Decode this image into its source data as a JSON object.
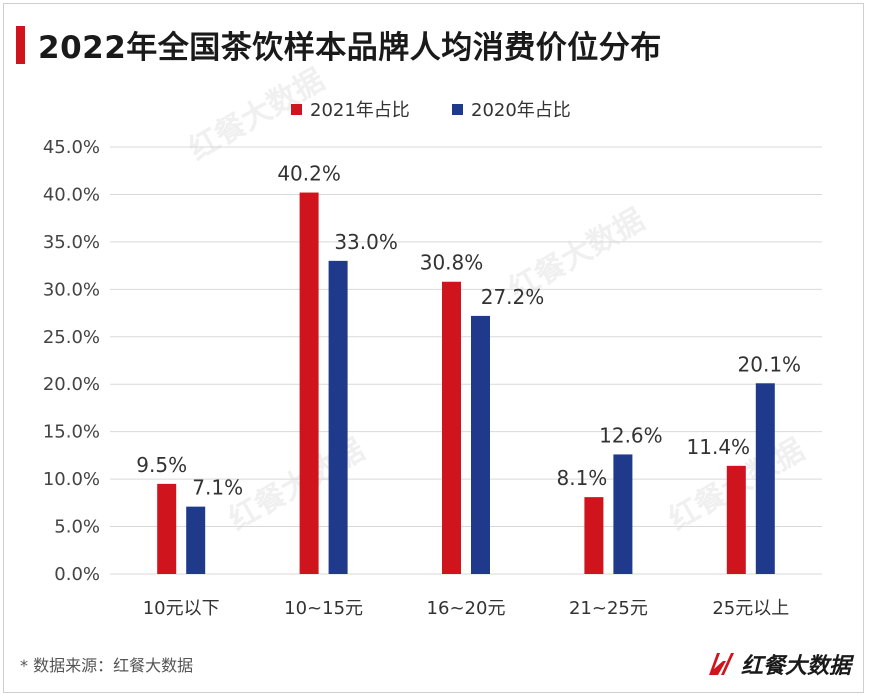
{
  "title": "2022年全国茶饮样本品牌人均消费价位分布",
  "source": "* 数据来源：红餐大数据",
  "logo_text": "红餐大数据",
  "watermark_text": "红餐大数据",
  "colors": {
    "series2021": "#d0141e",
    "series2020": "#1f3a8a",
    "accent": "#d0141e"
  },
  "chart_data": {
    "type": "bar",
    "categories": [
      "10元以下",
      "10~15元",
      "16~20元",
      "21~25元",
      "25元以上"
    ],
    "series": [
      {
        "name": "2021年占比",
        "values": [
          9.5,
          40.2,
          30.8,
          8.1,
          11.4
        ],
        "labels": [
          "9.5%",
          "40.2%",
          "30.8%",
          "8.1%",
          "11.4%"
        ]
      },
      {
        "name": "2020年占比",
        "values": [
          7.1,
          33.0,
          27.2,
          12.6,
          20.1
        ],
        "labels": [
          "7.1%",
          "33.0%",
          "27.2%",
          "12.6%",
          "20.1%"
        ]
      }
    ],
    "ylim": [
      0,
      45
    ],
    "yticks": [
      "0.0%",
      "5.0%",
      "10.0%",
      "15.0%",
      "20.0%",
      "25.0%",
      "30.0%",
      "35.0%",
      "40.0%",
      "45.0%"
    ],
    "grid": true,
    "legend_position": "top-center"
  }
}
